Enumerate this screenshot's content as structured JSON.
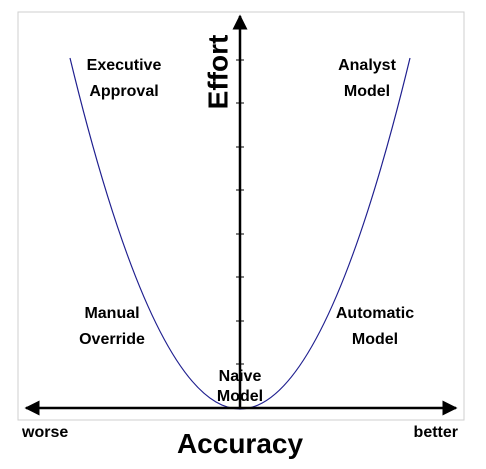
{
  "axes": {
    "x_title": "Accuracy",
    "y_title": "Effort",
    "x_left_label": "worse",
    "x_right_label": "better"
  },
  "regions": {
    "executive": [
      "Executive",
      "Approval"
    ],
    "analyst": [
      "Analyst",
      "Model"
    ],
    "manual": [
      "Manual",
      "Override"
    ],
    "automatic": [
      "Automatic",
      "Model"
    ],
    "naive": [
      "Naive",
      "Model"
    ]
  },
  "colors": {
    "curve": "#1f1f8f",
    "axis": "#000000",
    "frame": "#cfcfcf"
  }
}
